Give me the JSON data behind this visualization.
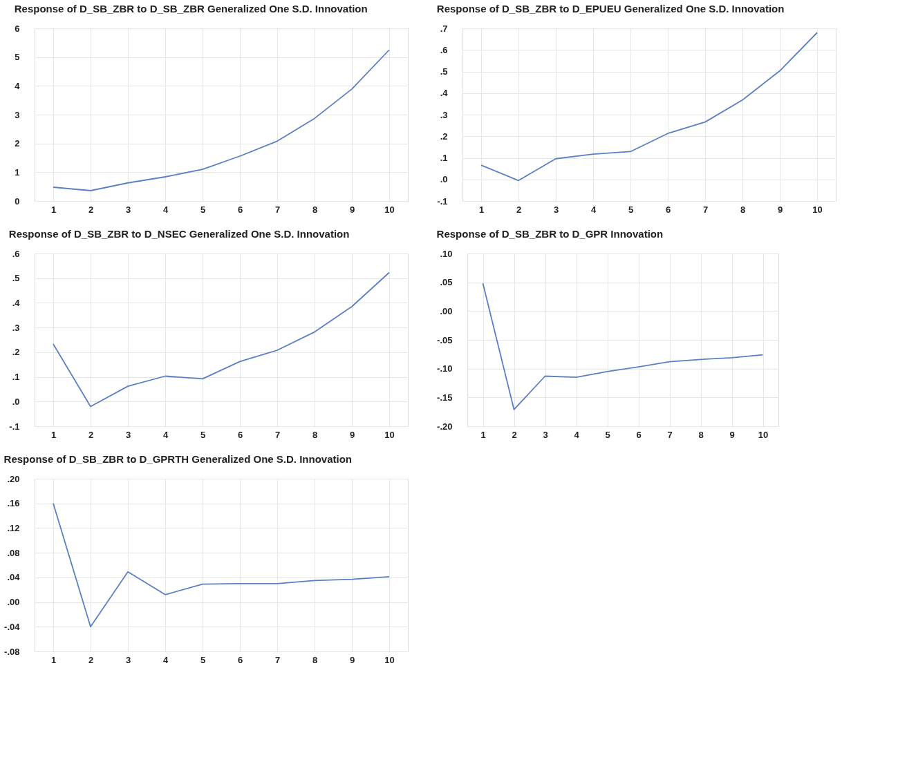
{
  "chart_data": [
    {
      "type": "line",
      "title": "Response of D_SB_ZBR to D_SB_ZBR Generalized One S.D. Innovation",
      "categories": [
        "1",
        "2",
        "3",
        "4",
        "5",
        "6",
        "7",
        "8",
        "9",
        "10"
      ],
      "series": [
        {
          "color": "#5b7fc4",
          "values": [
            0.48,
            0.36,
            0.63,
            0.84,
            1.1,
            1.56,
            2.08,
            2.87,
            3.89,
            5.25
          ]
        }
      ],
      "ylim": [
        0,
        6
      ],
      "yticks": [
        0,
        1,
        2,
        3,
        4,
        5,
        6
      ],
      "grid": true
    },
    {
      "type": "line",
      "title": "Response of D_SB_ZBR to D_EPUEU Generalized One S.D. Innovation",
      "categories": [
        "1",
        "2",
        "3",
        "4",
        "5",
        "6",
        "7",
        "8",
        "9",
        "10"
      ],
      "series": [
        {
          "color": "#5b7fc4",
          "values": [
            0.066,
            -0.005,
            0.096,
            0.117,
            0.129,
            0.213,
            0.266,
            0.368,
            0.503,
            0.68
          ]
        }
      ],
      "ylim": [
        -0.1,
        0.7
      ],
      "yticks": [
        {
          "value": -0.1,
          "label": "-.1"
        },
        {
          "value": 0,
          "label": ".0"
        },
        {
          "value": 0.1,
          "label": ".1"
        },
        {
          "value": 0.2,
          "label": ".2"
        },
        {
          "value": 0.3,
          "label": ".3"
        },
        {
          "value": 0.4,
          "label": ".4"
        },
        {
          "value": 0.5,
          "label": ".5"
        },
        {
          "value": 0.6,
          "label": ".6"
        },
        {
          "value": 0.7,
          "label": ".7"
        }
      ],
      "grid": true
    },
    {
      "type": "line",
      "title": "Response of D_SB_ZBR to D_NSEC Generalized One S.D. Innovation",
      "categories": [
        "1",
        "2",
        "3",
        "4",
        "5",
        "6",
        "7",
        "8",
        "9",
        "10"
      ],
      "series": [
        {
          "color": "#5b7fc4",
          "values": [
            0.233,
            -0.02,
            0.062,
            0.103,
            0.092,
            0.162,
            0.208,
            0.282,
            0.385,
            0.523
          ]
        }
      ],
      "ylim": [
        -0.1,
        0.6
      ],
      "yticks": [
        {
          "value": -0.1,
          "label": "-.1"
        },
        {
          "value": 0,
          "label": ".0"
        },
        {
          "value": 0.1,
          "label": ".1"
        },
        {
          "value": 0.2,
          "label": ".2"
        },
        {
          "value": 0.3,
          "label": ".3"
        },
        {
          "value": 0.4,
          "label": ".4"
        },
        {
          "value": 0.5,
          "label": ".5"
        },
        {
          "value": 0.6,
          "label": ".6"
        }
      ],
      "grid": true
    },
    {
      "type": "line",
      "title": "Response of D_SB_ZBR to D_GPR Innovation",
      "categories": [
        "1",
        "2",
        "3",
        "4",
        "5",
        "6",
        "7",
        "8",
        "9",
        "10"
      ],
      "series": [
        {
          "color": "#5b7fc4",
          "values": [
            0.048,
            -0.171,
            -0.113,
            -0.115,
            -0.105,
            -0.097,
            -0.088,
            -0.084,
            -0.081,
            -0.076
          ]
        }
      ],
      "ylim": [
        -0.2,
        0.1
      ],
      "yticks": [
        {
          "value": -0.2,
          "label": "-.20"
        },
        {
          "value": -0.15,
          "label": "-.15"
        },
        {
          "value": -0.1,
          "label": "-.10"
        },
        {
          "value": -0.05,
          "label": "-.05"
        },
        {
          "value": 0,
          "label": ".00"
        },
        {
          "value": 0.05,
          "label": ".05"
        },
        {
          "value": 0.1,
          "label": ".10"
        }
      ],
      "grid": true
    },
    {
      "type": "line",
      "title": "Response of D_SB_ZBR to D_GPRTH Generalized One S.D. Innovation",
      "categories": [
        "1",
        "2",
        "3",
        "4",
        "5",
        "6",
        "7",
        "8",
        "9",
        "10"
      ],
      "series": [
        {
          "color": "#5b7fc4",
          "values": [
            0.16,
            -0.04,
            0.049,
            0.012,
            0.029,
            0.03,
            0.03,
            0.035,
            0.037,
            0.041
          ]
        }
      ],
      "ylim": [
        -0.08,
        0.2
      ],
      "yticks": [
        {
          "value": -0.08,
          "label": "-.08"
        },
        {
          "value": -0.04,
          "label": "-.04"
        },
        {
          "value": 0,
          "label": ".00"
        },
        {
          "value": 0.04,
          "label": ".04"
        },
        {
          "value": 0.08,
          "label": ".08"
        },
        {
          "value": 0.12,
          "label": ".12"
        },
        {
          "value": 0.16,
          "label": ".16"
        },
        {
          "value": 0.2,
          "label": ".20"
        }
      ],
      "grid": true
    }
  ]
}
